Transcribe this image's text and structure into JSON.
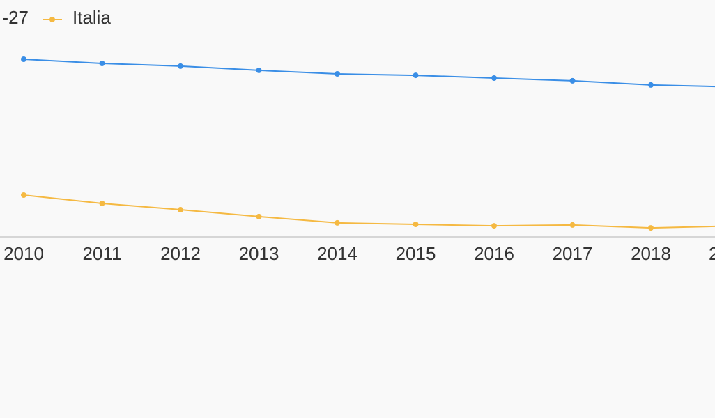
{
  "chart_data": {
    "type": "line",
    "categories": [
      "2010",
      "2011",
      "2012",
      "2013",
      "2014",
      "2015",
      "2016",
      "2017",
      "2018",
      "2"
    ],
    "series": [
      {
        "name": "-27",
        "color": "#3a8ee6",
        "values": [
          85,
          83,
          81.7,
          79.7,
          78,
          77.3,
          76,
          74.7,
          72.7,
          71.8
        ]
      },
      {
        "name": "Italia",
        "color": "#f5b942",
        "values": [
          20,
          16,
          13,
          9.7,
          6.7,
          6,
          5.3,
          5.7,
          4.3,
          5.2
        ]
      }
    ],
    "ylim": [
      0,
      100
    ]
  }
}
